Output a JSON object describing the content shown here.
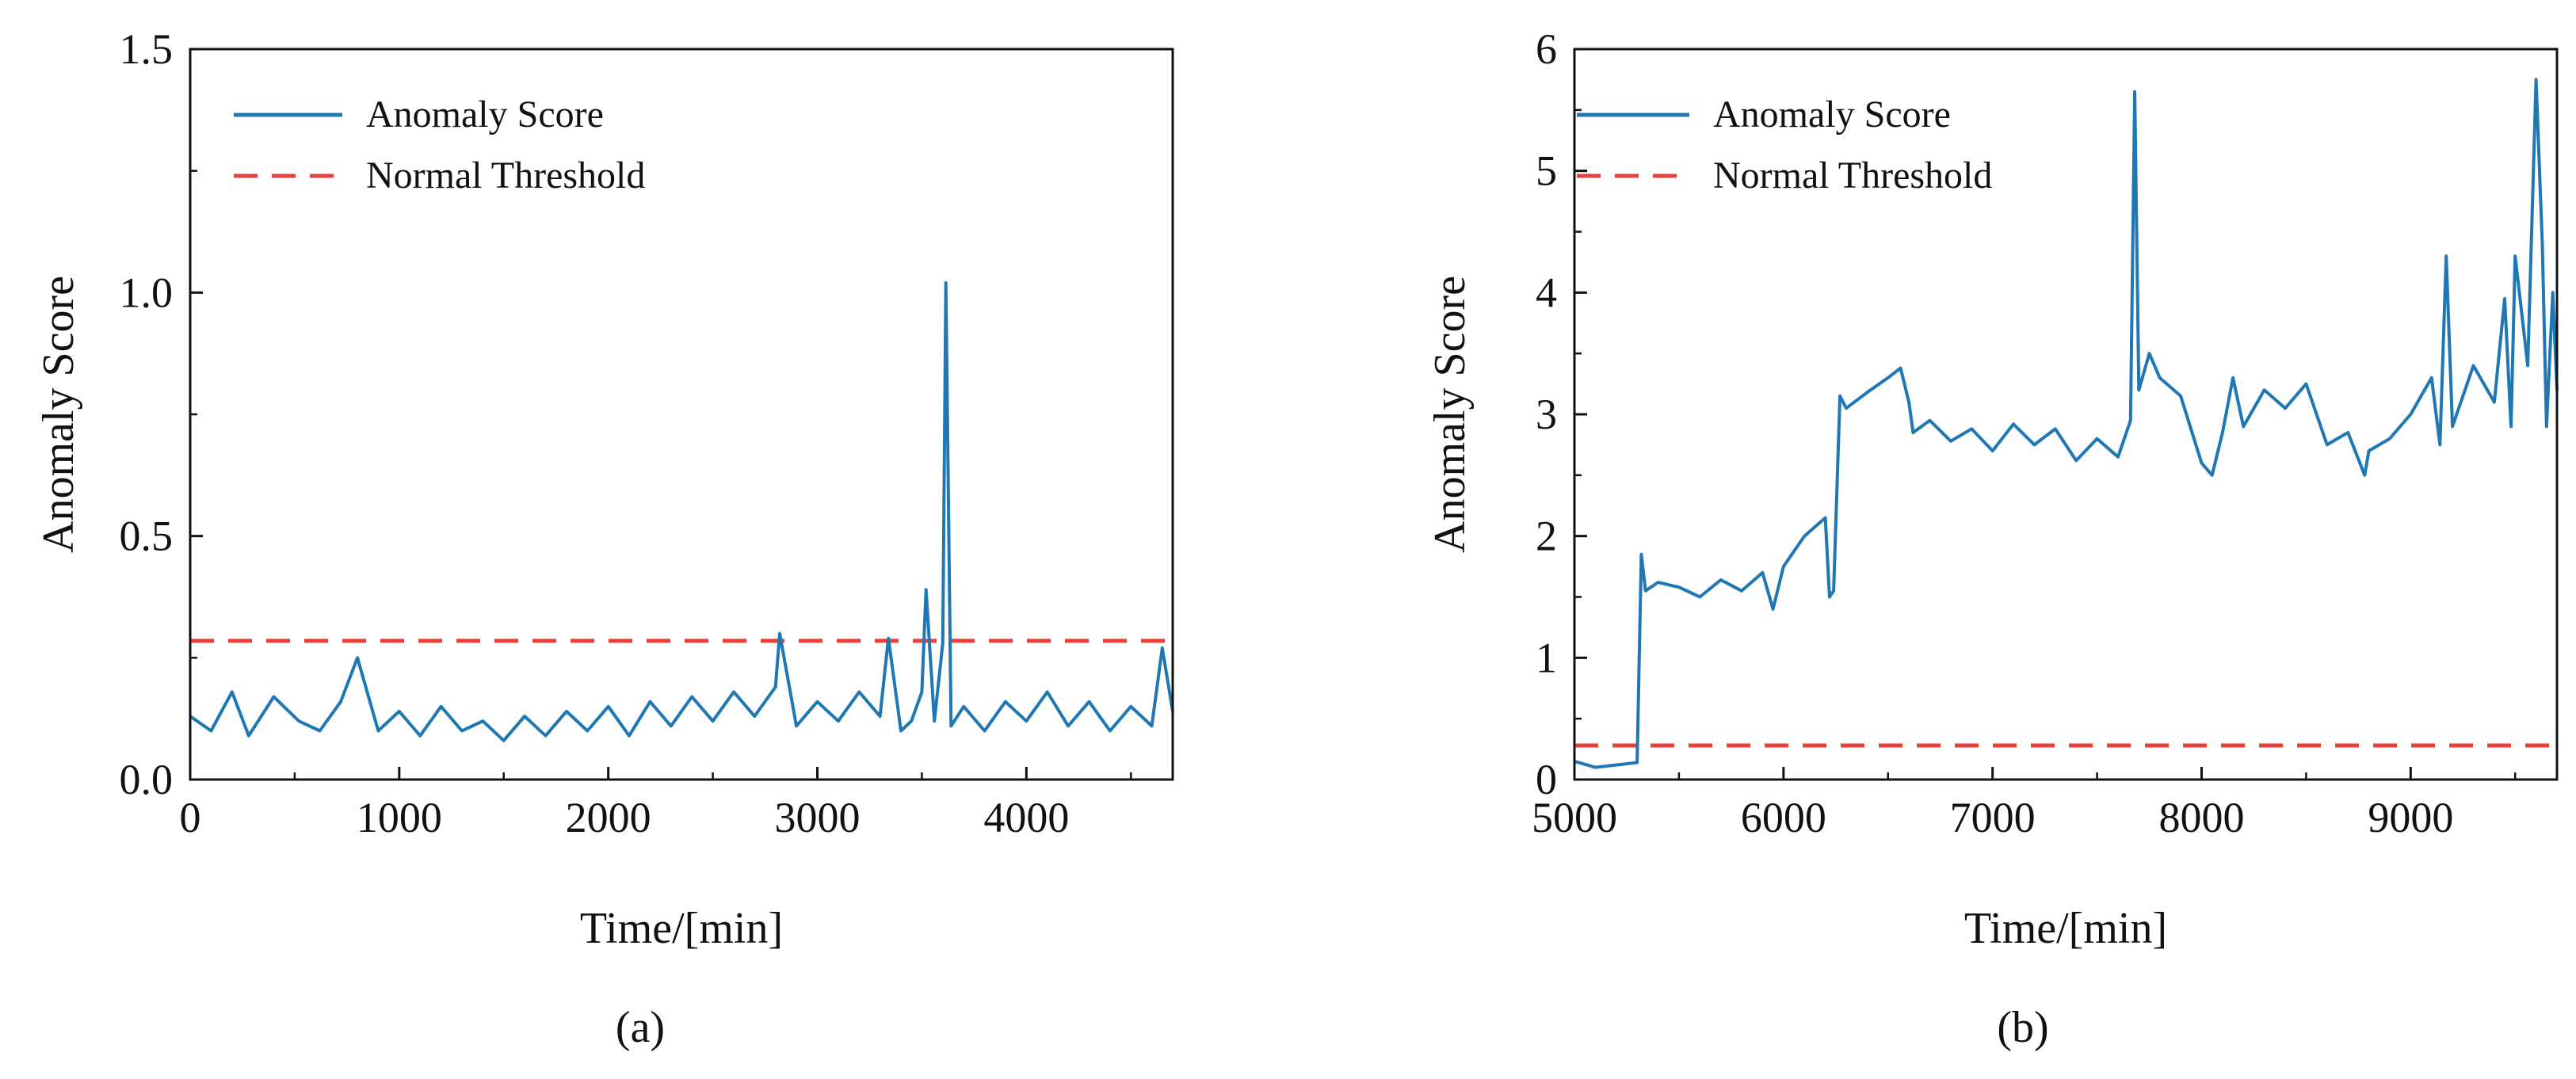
{
  "colors": {
    "score": "#1f77b4",
    "threshold": "#e8403a",
    "axis": "#111111"
  },
  "chart_data": [
    {
      "type": "line",
      "panel_label": "(a)",
      "xlabel": "Time/[min]",
      "ylabel": "Anomaly Score",
      "xlim": [
        0,
        4700
      ],
      "ylim": [
        0,
        1.5
      ],
      "xticks": [
        0,
        1000,
        2000,
        3000,
        4000
      ],
      "xtick_labels": [
        "0",
        "1000",
        "2000",
        "3000",
        "4000"
      ],
      "yticks": [
        0,
        0.5,
        1.0,
        1.5
      ],
      "ytick_labels": [
        "0.0",
        "0.5",
        "1.0",
        "1.5"
      ],
      "x_minor_step": 500,
      "y_minor_step": 0.25,
      "legend": [
        {
          "label": "Anomaly Score",
          "style": "solid"
        },
        {
          "label": "Normal Threshold",
          "style": "dashed"
        }
      ],
      "threshold": 0.285,
      "series": [
        {
          "name": "Anomaly Score",
          "x": [
            0,
            100,
            200,
            280,
            400,
            520,
            620,
            720,
            800,
            900,
            1000,
            1100,
            1200,
            1300,
            1400,
            1500,
            1600,
            1700,
            1800,
            1900,
            2000,
            2100,
            2200,
            2300,
            2400,
            2500,
            2600,
            2700,
            2800,
            2820,
            2900,
            3000,
            3100,
            3200,
            3300,
            3340,
            3400,
            3450,
            3500,
            3520,
            3560,
            3600,
            3615,
            3640,
            3700,
            3800,
            3900,
            4000,
            4100,
            4200,
            4300,
            4400,
            4500,
            4600,
            4650,
            4700
          ],
          "values": [
            0.13,
            0.1,
            0.18,
            0.09,
            0.17,
            0.12,
            0.1,
            0.16,
            0.25,
            0.1,
            0.14,
            0.09,
            0.15,
            0.1,
            0.12,
            0.08,
            0.13,
            0.09,
            0.14,
            0.1,
            0.15,
            0.09,
            0.16,
            0.11,
            0.17,
            0.12,
            0.18,
            0.13,
            0.19,
            0.3,
            0.11,
            0.16,
            0.12,
            0.18,
            0.13,
            0.29,
            0.1,
            0.12,
            0.18,
            0.39,
            0.12,
            0.28,
            1.02,
            0.11,
            0.15,
            0.1,
            0.16,
            0.12,
            0.18,
            0.11,
            0.16,
            0.1,
            0.15,
            0.11,
            0.27,
            0.14
          ]
        }
      ]
    },
    {
      "type": "line",
      "panel_label": "(b)",
      "xlabel": "Time/[min]",
      "ylabel": "Anomaly Score",
      "xlim": [
        5000,
        9700
      ],
      "ylim": [
        0,
        6
      ],
      "xticks": [
        5000,
        6000,
        7000,
        8000,
        9000
      ],
      "xtick_labels": [
        "5000",
        "6000",
        "7000",
        "8000",
        "9000"
      ],
      "yticks": [
        0,
        1,
        2,
        3,
        4,
        5,
        6
      ],
      "ytick_labels": [
        "0",
        "1",
        "2",
        "3",
        "4",
        "5",
        "6"
      ],
      "x_minor_step": 500,
      "y_minor_step": 0.5,
      "legend": [
        {
          "label": "Anomaly Score",
          "style": "solid"
        },
        {
          "label": "Normal Threshold",
          "style": "dashed"
        }
      ],
      "threshold": 0.28,
      "series": [
        {
          "name": "Anomaly Score",
          "x": [
            5000,
            5100,
            5200,
            5300,
            5320,
            5340,
            5400,
            5500,
            5600,
            5700,
            5800,
            5900,
            5950,
            6000,
            6100,
            6200,
            6220,
            6240,
            6270,
            6300,
            6400,
            6500,
            6560,
            6600,
            6620,
            6700,
            6800,
            6900,
            7000,
            7100,
            7200,
            7300,
            7400,
            7500,
            7600,
            7660,
            7680,
            7700,
            7750,
            7800,
            7900,
            8000,
            8050,
            8100,
            8150,
            8200,
            8300,
            8400,
            8500,
            8600,
            8700,
            8780,
            8800,
            8900,
            9000,
            9100,
            9140,
            9170,
            9200,
            9300,
            9400,
            9450,
            9480,
            9500,
            9560,
            9600,
            9630,
            9650,
            9680,
            9700
          ],
          "values": [
            0.15,
            0.1,
            0.12,
            0.14,
            1.85,
            1.55,
            1.62,
            1.58,
            1.5,
            1.64,
            1.55,
            1.7,
            1.4,
            1.75,
            2.0,
            2.15,
            1.5,
            1.55,
            3.15,
            3.05,
            3.18,
            3.3,
            3.38,
            3.1,
            2.85,
            2.95,
            2.78,
            2.88,
            2.7,
            2.92,
            2.75,
            2.88,
            2.62,
            2.8,
            2.65,
            2.95,
            5.65,
            3.2,
            3.5,
            3.3,
            3.15,
            2.6,
            2.5,
            2.85,
            3.3,
            2.9,
            3.2,
            3.05,
            3.25,
            2.75,
            2.85,
            2.5,
            2.7,
            2.8,
            3.0,
            3.3,
            2.75,
            4.3,
            2.9,
            3.4,
            3.1,
            3.95,
            2.9,
            4.3,
            3.4,
            5.75,
            4.4,
            2.9,
            4.0,
            3.2
          ]
        }
      ]
    }
  ]
}
